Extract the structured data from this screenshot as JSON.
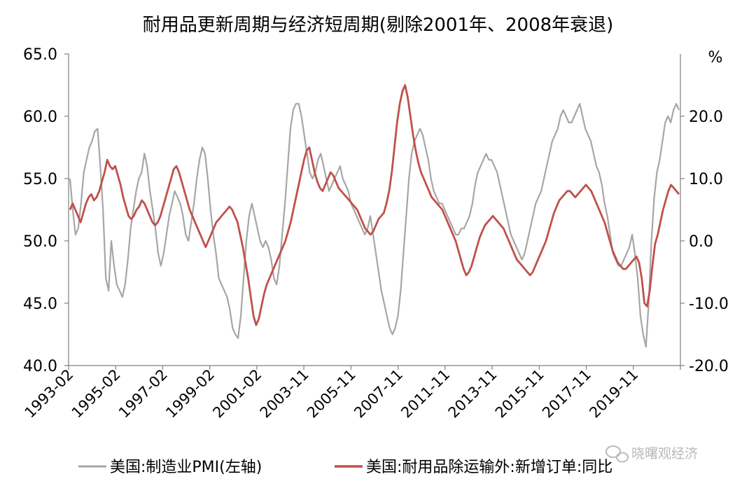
{
  "chart_data": {
    "type": "line",
    "title": "耐用品更新周期与经济短周期(剔除2001年、2008年衰退)",
    "x_tick_labels": [
      "1993-02",
      "1995-02",
      "1997-02",
      "1999-02",
      "2001-02",
      "2003-11",
      "2005-11",
      "2007-11",
      "2011-11",
      "2013-11",
      "2015-11",
      "2017-11",
      "2019-11"
    ],
    "y_left": {
      "ylim": [
        40,
        65
      ],
      "ticks": [
        "40.0",
        "45.0",
        "50.0",
        "55.0",
        "60.0",
        "65.0"
      ]
    },
    "y_right": {
      "unit": "%",
      "ylim": [
        -20,
        30
      ],
      "ticks": [
        "-20.0",
        "-10.0",
        "0.0",
        "10.0",
        "20.0"
      ]
    },
    "legend_position": "bottom",
    "colors": {
      "pmi": "#a6a6a6",
      "orders": "#c0504d",
      "axis": "#7f7f7f"
    },
    "series": [
      {
        "name": "美国:制造业PMI(左轴)",
        "axis": "left",
        "values": [
          55.0,
          52.5,
          50.5,
          51.0,
          53.0,
          55.5,
          56.5,
          57.5,
          58.0,
          58.8,
          59.0,
          56.0,
          52.5,
          47.0,
          46.0,
          50.0,
          48.0,
          46.5,
          46.0,
          45.5,
          46.5,
          48.5,
          51.0,
          52.5,
          54.0,
          55.0,
          55.5,
          57.0,
          56.0,
          54.0,
          52.5,
          51.0,
          49.0,
          48.0,
          49.0,
          50.5,
          52.0,
          53.0,
          54.0,
          53.5,
          53.0,
          52.0,
          50.5,
          50.0,
          51.5,
          53.0,
          55.0,
          56.5,
          57.5,
          57.0,
          55.0,
          52.5,
          50.5,
          49.0,
          47.0,
          46.5,
          46.0,
          45.5,
          44.5,
          43.0,
          42.5,
          42.2,
          44.0,
          47.0,
          50.0,
          52.0,
          53.0,
          52.0,
          51.0,
          50.0,
          49.5,
          50.0,
          49.5,
          48.5,
          47.0,
          46.5,
          48.0,
          50.5,
          53.0,
          56.0,
          59.0,
          60.5,
          61.0,
          61.0,
          60.0,
          58.5,
          57.0,
          55.5,
          55.0,
          55.5,
          56.5,
          57.0,
          56.0,
          55.0,
          54.0,
          54.5,
          55.0,
          55.5,
          56.0,
          55.0,
          54.5,
          54.0,
          53.0,
          52.5,
          52.0,
          51.5,
          51.0,
          50.5,
          51.0,
          52.0,
          50.5,
          49.0,
          47.5,
          46.0,
          45.0,
          44.0,
          43.0,
          42.5,
          43.0,
          44.0,
          46.0,
          49.0,
          52.0,
          55.0,
          57.0,
          58.0,
          58.5,
          59.0,
          58.5,
          57.5,
          56.5,
          55.0,
          54.0,
          53.5,
          53.0,
          53.0,
          52.5,
          52.0,
          51.5,
          51.0,
          50.5,
          50.5,
          51.0,
          51.0,
          51.5,
          52.0,
          53.0,
          54.5,
          55.5,
          56.0,
          56.5,
          57.0,
          56.5,
          56.5,
          56.0,
          55.5,
          54.5,
          53.5,
          52.5,
          51.5,
          50.5,
          50.0,
          49.5,
          49.0,
          48.5,
          49.0,
          50.0,
          51.0,
          52.0,
          53.0,
          53.5,
          54.0,
          55.0,
          56.0,
          57.0,
          58.0,
          58.5,
          59.0,
          60.0,
          60.5,
          60.0,
          59.5,
          59.5,
          60.0,
          60.5,
          61.0,
          60.0,
          59.0,
          58.5,
          58.0,
          57.0,
          56.0,
          55.5,
          54.5,
          53.0,
          52.0,
          50.5,
          49.0,
          48.5,
          48.0,
          48.0,
          48.5,
          49.0,
          49.5,
          50.5,
          49.0,
          47.0,
          44.0,
          42.5,
          41.5,
          45.0,
          50.0,
          53.5,
          55.5,
          56.5,
          58.0,
          59.5,
          60.0,
          59.5,
          60.5,
          61.0,
          60.5
        ],
        "notes": "approximate monthly readings read off the chart"
      },
      {
        "name": "美国:耐用品除运输外:新增订单:同比",
        "axis": "right",
        "values": [
          5.0,
          6.0,
          5.0,
          4.0,
          3.0,
          4.5,
          6.0,
          7.0,
          7.5,
          6.5,
          7.0,
          8.0,
          9.5,
          11.0,
          13.0,
          12.0,
          11.5,
          12.0,
          10.5,
          9.0,
          7.0,
          5.5,
          4.0,
          3.5,
          4.0,
          5.0,
          5.5,
          6.5,
          6.0,
          5.0,
          4.0,
          3.0,
          2.5,
          3.0,
          4.0,
          5.5,
          7.0,
          8.5,
          10.0,
          11.5,
          12.0,
          11.0,
          9.5,
          8.0,
          6.5,
          5.0,
          4.0,
          3.0,
          2.0,
          1.0,
          0.0,
          -1.0,
          0.0,
          1.0,
          2.0,
          3.0,
          3.5,
          4.0,
          4.5,
          5.0,
          5.5,
          5.0,
          4.0,
          3.0,
          1.0,
          -1.0,
          -3.5,
          -6.0,
          -9.0,
          -12.0,
          -13.5,
          -12.5,
          -10.5,
          -8.5,
          -7.0,
          -6.0,
          -5.0,
          -4.0,
          -3.0,
          -2.0,
          -1.0,
          0.0,
          1.5,
          3.0,
          5.0,
          7.0,
          9.0,
          11.0,
          13.0,
          14.5,
          15.0,
          13.0,
          11.0,
          9.5,
          8.5,
          8.0,
          9.0,
          10.0,
          11.0,
          10.5,
          9.5,
          8.5,
          8.0,
          7.5,
          7.0,
          6.5,
          6.0,
          5.5,
          5.0,
          4.0,
          3.0,
          2.0,
          1.5,
          1.0,
          1.5,
          2.5,
          3.5,
          4.0,
          4.5,
          6.0,
          8.0,
          11.0,
          15.0,
          19.0,
          22.0,
          24.0,
          25.0,
          23.0,
          20.0,
          17.0,
          14.5,
          12.5,
          11.0,
          10.0,
          9.0,
          8.0,
          7.0,
          6.5,
          6.0,
          5.5,
          5.0,
          4.0,
          3.0,
          2.0,
          1.0,
          0.0,
          -1.5,
          -3.0,
          -4.5,
          -5.5,
          -5.0,
          -4.0,
          -2.5,
          -1.0,
          0.5,
          1.5,
          2.5,
          3.0,
          3.5,
          4.0,
          3.5,
          3.0,
          2.5,
          2.0,
          1.0,
          0.0,
          -1.0,
          -2.0,
          -3.0,
          -3.5,
          -4.0,
          -4.5,
          -5.0,
          -5.5,
          -5.0,
          -4.0,
          -3.0,
          -2.0,
          -1.0,
          0.0,
          1.5,
          3.0,
          4.5,
          5.5,
          6.5,
          7.0,
          7.5,
          8.0,
          8.0,
          7.5,
          7.0,
          7.5,
          8.0,
          8.5,
          9.0,
          8.5,
          8.0,
          7.0,
          6.0,
          5.0,
          4.0,
          3.0,
          1.5,
          0.0,
          -1.5,
          -2.5,
          -3.5,
          -4.0,
          -4.5,
          -4.5,
          -4.0,
          -3.5,
          -3.0,
          -2.5,
          -3.5,
          -6.0,
          -10.0,
          -10.5,
          -8.0,
          -4.0,
          -0.5,
          1.0,
          3.0,
          5.0,
          6.5,
          8.0,
          9.0,
          8.5,
          8.0,
          7.5
        ]
      }
    ]
  },
  "watermark": "晓曙观经济"
}
